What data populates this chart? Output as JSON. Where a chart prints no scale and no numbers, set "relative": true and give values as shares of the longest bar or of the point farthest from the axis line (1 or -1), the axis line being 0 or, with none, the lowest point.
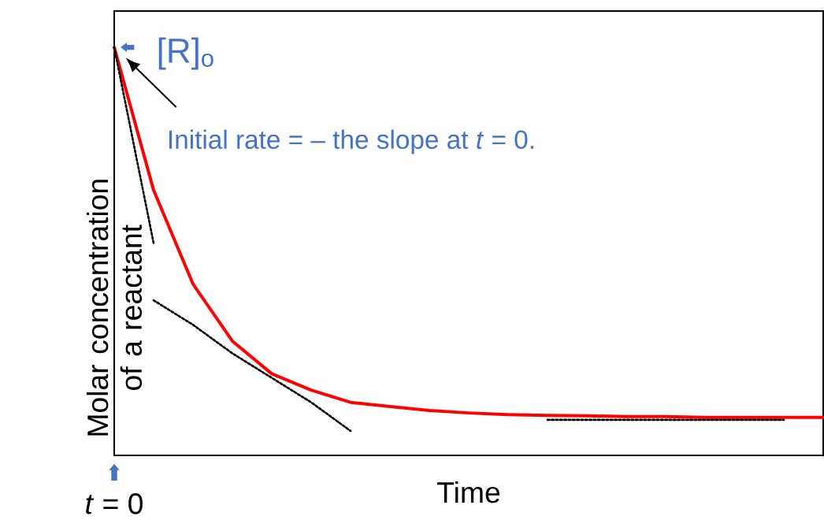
{
  "chart_data": {
    "type": "line",
    "relative": true,
    "xlabel": "Time",
    "ylabel": "Molar concentration of a reactant",
    "marker": "none",
    "categories": [
      null,
      null,
      null,
      null,
      null,
      null,
      null,
      null,
      null,
      null,
      null,
      null,
      null,
      null,
      null,
      null,
      null,
      null,
      null
    ],
    "series": [
      {
        "color": "#ff0000",
        "line_style": "solid",
        "values": [
          1.0,
          0.65,
          0.42,
          0.28,
          0.2,
          0.16,
          0.13,
          0.12,
          0.11,
          0.104,
          0.1,
          0.098,
          0.097,
          0.095,
          0.095,
          0.093,
          0.093,
          0.093,
          0.093
        ]
      },
      {
        "color": "#000000",
        "line_style": "dotted",
        "values": [
          1.0,
          0.52,
          null,
          null,
          null,
          null,
          null,
          null,
          null,
          null,
          null,
          null,
          null,
          null,
          null,
          null,
          null,
          null,
          null
        ]
      },
      {
        "color": "#000000",
        "line_style": "dotted",
        "values": [
          null,
          0.38,
          0.32,
          0.25,
          0.19,
          0.13,
          0.06,
          null,
          null,
          null,
          null,
          null,
          null,
          null,
          null,
          null,
          null,
          null,
          null
        ]
      },
      {
        "color": "#000000",
        "line_style": "dotted",
        "values": [
          null,
          null,
          null,
          null,
          null,
          null,
          null,
          null,
          null,
          null,
          null,
          0.087,
          0.087,
          0.087,
          0.087,
          0.087,
          0.087,
          0.087,
          null
        ]
      }
    ],
    "annotations": [
      "[R]$_{o}$",
      "Initial rate = – the slope at *t* = 0.",
      "*t* = 0"
    ]
  }
}
